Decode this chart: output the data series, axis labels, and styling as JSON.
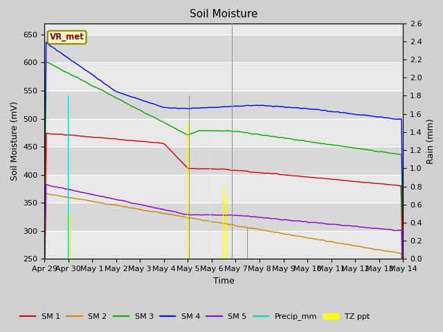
{
  "title": "Soil Moisture",
  "xlabel": "Time",
  "ylabel_left": "Soil Moisture (mV)",
  "ylabel_right": "Rain (mm)",
  "ylim_left": [
    250,
    670
  ],
  "ylim_right": [
    0.0,
    2.6
  ],
  "yticks_left": [
    250,
    300,
    350,
    400,
    450,
    500,
    550,
    600,
    650
  ],
  "yticks_right": [
    0.0,
    0.2,
    0.4,
    0.6,
    0.8,
    1.0,
    1.2,
    1.4,
    1.6,
    1.8,
    2.0,
    2.2,
    2.4,
    2.6
  ],
  "xtick_labels": [
    "Apr 29",
    "Apr 30",
    "May 1",
    "May 2",
    "May 3",
    "May 4",
    "May 5",
    "May 6",
    "May 7",
    "May 8",
    "May 9",
    "May 10",
    "May 11",
    "May 12",
    "May 13",
    "May 14"
  ],
  "xtick_positions": [
    0,
    1,
    2,
    3,
    4,
    5,
    6,
    7,
    8,
    9,
    10,
    11,
    12,
    13,
    14,
    15
  ],
  "station_label": "VR_met",
  "fig_bg": "#d0d0d0",
  "axes_bg_light": "#e8e8e8",
  "axes_bg_dark": "#d8d8d8",
  "grid_color": "#ffffff",
  "sm1_color": "#cc0000",
  "sm2_color": "#cc8800",
  "sm3_color": "#00aa00",
  "sm4_color": "#0000ff",
  "sm5_color": "#8800cc",
  "precip_color": "#00cccc",
  "tzppt_color": "#ffff00",
  "precip_times": [
    1.0,
    6.05,
    7.85
  ],
  "precip_vals": [
    1.8,
    1.8,
    2.6
  ],
  "precip_times2": [
    8.5
  ],
  "precip_vals2": [
    0.35
  ],
  "tz_times": [
    1.0,
    1.06,
    5.98,
    6.93,
    7.38,
    7.48,
    7.6
  ],
  "tz_heights_mm": [
    1.7,
    0.5,
    1.5,
    1.35,
    1.0,
    0.8,
    0.7
  ]
}
